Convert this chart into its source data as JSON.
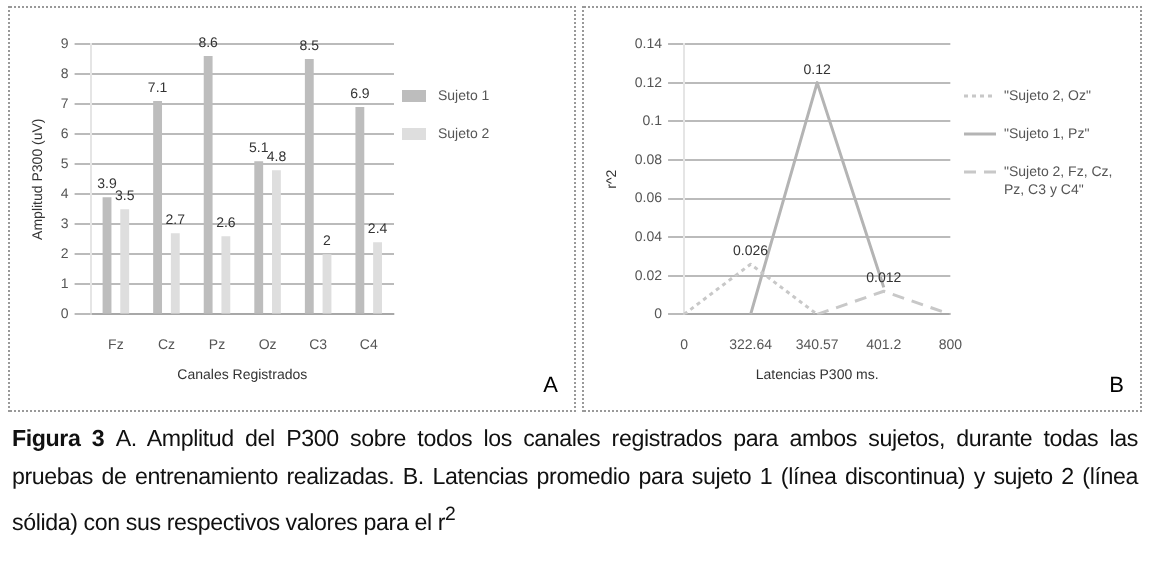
{
  "chart_data": [
    {
      "type": "bar",
      "categories": [
        "Fz",
        "Cz",
        "Pz",
        "Oz",
        "C3",
        "C4"
      ],
      "series": [
        {
          "name": "Sujeto 1",
          "color": "#bdbdbd",
          "values": [
            3.9,
            7.1,
            8.6,
            5.1,
            8.5,
            6.9
          ]
        },
        {
          "name": "Sujeto 2",
          "color": "#dedede",
          "values": [
            3.5,
            2.7,
            2.6,
            4.8,
            2.0,
            2.4
          ]
        }
      ],
      "ylim": [
        0,
        9
      ],
      "yticks": [
        0,
        1,
        2,
        3,
        4,
        5,
        6,
        7,
        8,
        9
      ],
      "grid": "y",
      "legend": "right",
      "data_labels": true,
      "xlabel": "Canales Registrados",
      "ylabel": "Amplitud P300 (uV)",
      "annotations": [
        "A",
        "Figura 3",
        "A. Amplitud del P300 sobre todos los canales registrados para ambos sujetos, durante todas las pruebas de entrenamiento realizadas. B. Latencias promedio para sujeto 1 (línea discontinua) y sujeto 2 (línea sólida) con sus respectivos valores para el r$^{2}$"
      ]
    },
    {
      "type": "line",
      "categories": [
        "0",
        "322.64",
        "340.57",
        "401.2",
        "800"
      ],
      "series": [
        {
          "name": "\"Sujeto 2, Oz\"",
          "color": "#c8c8c8",
          "line_style": "dotted",
          "values": [
            0,
            0.026,
            0,
            null,
            null
          ],
          "value_labels": [
            null,
            "0.026",
            null,
            null,
            null
          ]
        },
        {
          "name": "\"Sujeto 1, Pz\"",
          "color": "#b4b4b4",
          "line_style": "solid",
          "values": [
            null,
            0,
            0.12,
            0.014,
            null
          ],
          "value_labels": [
            null,
            null,
            "0.12",
            null,
            null
          ]
        },
        {
          "name": "\"Sujeto 2, Fz, Cz, Pz, C3 y C4\"",
          "color": "#c8c8c8",
          "line_style": "dashed",
          "values": [
            null,
            null,
            0,
            0.012,
            0
          ],
          "value_labels": [
            null,
            null,
            null,
            "0.012",
            null
          ]
        }
      ],
      "ylim": [
        0,
        0.14
      ],
      "yticks": [
        0,
        0.02,
        0.04,
        0.06,
        0.08,
        0.1,
        0.12,
        0.14
      ],
      "grid": "y",
      "legend": "right",
      "marker": "none",
      "xlabel": "Latencias P300 ms.",
      "ylabel": "r^2",
      "annotations": [
        "B"
      ]
    }
  ]
}
